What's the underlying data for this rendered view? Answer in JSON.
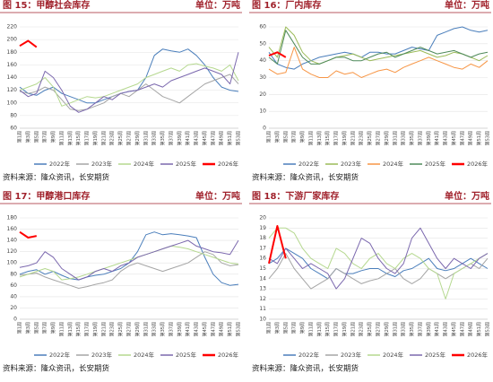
{
  "chart_data": [
    {
      "type": "line",
      "title": "图 15：甲醇社会库存",
      "unit": "单位：万吨",
      "source": "资料来源：隆众资讯，长安期货",
      "categories": [
        "第1周",
        "第3周",
        "第5周",
        "第7周",
        "第9周",
        "第11周",
        "第13周",
        "第15周",
        "第17周",
        "第19周",
        "第21周",
        "第23周",
        "第25周",
        "第27周",
        "第29周",
        "第31周",
        "第33周",
        "第35周",
        "第37周",
        "第39周",
        "第41周",
        "第43周",
        "第45周",
        "第47周",
        "第49周",
        "第51周",
        "第53周"
      ],
      "ylim": [
        60,
        220
      ],
      "yticks": [
        60,
        80,
        100,
        120,
        140,
        160,
        180,
        200,
        220
      ],
      "grid": true,
      "series": [
        {
          "name": "2022年",
          "color": "#4a7ebb",
          "values": [
            125,
            115,
            112,
            120,
            125,
            115,
            110,
            105,
            100,
            100,
            105,
            110,
            115,
            118,
            120,
            140,
            175,
            185,
            182,
            180,
            185,
            175,
            160,
            140,
            125,
            120,
            118
          ]
        },
        {
          "name": "2023年",
          "color": "#a5a5a5",
          "values": [
            118,
            115,
            118,
            125,
            120,
            105,
            90,
            88,
            90,
            95,
            100,
            110,
            115,
            110,
            120,
            130,
            120,
            110,
            105,
            100,
            110,
            120,
            130,
            135,
            140,
            145,
            130
          ]
        },
        {
          "name": "2024年",
          "color": "#b5d88f",
          "values": [
            120,
            125,
            130,
            140,
            125,
            95,
            100,
            105,
            110,
            108,
            110,
            115,
            120,
            125,
            130,
            140,
            145,
            150,
            155,
            150,
            160,
            162,
            158,
            155,
            150,
            160,
            135
          ]
        },
        {
          "name": "2025年",
          "color": "#7b68ae",
          "values": [
            120,
            110,
            115,
            150,
            140,
            120,
            95,
            85,
            90,
            100,
            110,
            105,
            115,
            118,
            120,
            125,
            130,
            125,
            135,
            140,
            145,
            150,
            155,
            150,
            145,
            130,
            180
          ]
        },
        {
          "name": "2026年",
          "color": "#ff0000",
          "values": [
            190,
            198,
            188,
            null,
            null,
            null,
            null,
            null,
            null,
            null,
            null,
            null,
            null,
            null,
            null,
            null,
            null,
            null,
            null,
            null,
            null,
            null,
            null,
            null,
            null,
            null,
            null
          ]
        }
      ]
    },
    {
      "type": "line",
      "title": "图 16：厂内库存",
      "unit": "单位：万吨",
      "source": "资料来源：隆众资讯，长安期货",
      "categories": [
        "第1周",
        "第3周",
        "第5周",
        "第7周",
        "第9周",
        "第11周",
        "第13周",
        "第15周",
        "第17周",
        "第19周",
        "第21周",
        "第23周",
        "第25周",
        "第27周",
        "第29周",
        "第31周",
        "第33周",
        "第35周",
        "第37周",
        "第39周",
        "第41周",
        "第43周",
        "第45周",
        "第47周",
        "第49周",
        "第51周",
        "第53周"
      ],
      "ylim": [
        0,
        60
      ],
      "yticks": [
        0,
        10,
        20,
        30,
        40,
        50,
        60
      ],
      "grid": true,
      "series": [
        {
          "name": "2022年",
          "color": "#4a7ebb",
          "values": [
            45,
            38,
            36,
            35,
            38,
            40,
            42,
            43,
            44,
            45,
            44,
            42,
            45,
            45,
            44,
            44,
            46,
            48,
            47,
            46,
            55,
            57,
            59,
            60,
            58,
            57,
            58
          ]
        },
        {
          "name": "2023年",
          "color": "#9bbb59",
          "values": [
            48,
            42,
            60,
            55,
            45,
            40,
            38,
            40,
            42,
            43,
            44,
            42,
            40,
            41,
            42,
            43,
            44,
            45,
            46,
            44,
            42,
            43,
            45,
            44,
            42,
            40,
            43
          ]
        },
        {
          "name": "2024年",
          "color": "#f79646",
          "values": [
            35,
            32,
            33,
            48,
            35,
            32,
            30,
            30,
            34,
            32,
            33,
            30,
            32,
            34,
            35,
            33,
            36,
            38,
            40,
            42,
            40,
            38,
            36,
            35,
            38,
            36,
            40
          ]
        },
        {
          "name": "2025年",
          "color": "#4f8a5a",
          "values": [
            42,
            38,
            58,
            50,
            42,
            38,
            38,
            40,
            42,
            42,
            40,
            40,
            42,
            44,
            45,
            42,
            44,
            46,
            48,
            46,
            44,
            45,
            46,
            44,
            42,
            44,
            45
          ]
        },
        {
          "name": "2026年",
          "color": "#ff0000",
          "values": [
            43,
            45,
            42,
            null,
            null,
            null,
            null,
            null,
            null,
            null,
            null,
            null,
            null,
            null,
            null,
            null,
            null,
            null,
            null,
            null,
            null,
            null,
            null,
            null,
            null,
            null,
            null
          ]
        }
      ]
    },
    {
      "type": "line",
      "title": "图 17：甲醇港口库存",
      "unit": "单位：万吨",
      "source": "资料来源：隆众资讯，长安期货",
      "categories": [
        "第1周",
        "第3周",
        "第5周",
        "第7周",
        "第9周",
        "第11周",
        "第13周",
        "第15周",
        "第17周",
        "第19周",
        "第21周",
        "第23周",
        "第25周",
        "第27周",
        "第29周",
        "第31周",
        "第33周",
        "第35周",
        "第37周",
        "第39周",
        "第41周",
        "第43周",
        "第45周",
        "第47周",
        "第49周",
        "第51周",
        "第53周"
      ],
      "ylim": [
        0,
        180
      ],
      "yticks": [
        0,
        20,
        40,
        60,
        80,
        100,
        120,
        140,
        160,
        180
      ],
      "grid": true,
      "series": [
        {
          "name": "2022年",
          "color": "#4a7ebb",
          "values": [
            80,
            85,
            88,
            80,
            85,
            78,
            72,
            70,
            75,
            78,
            80,
            85,
            90,
            100,
            120,
            150,
            155,
            150,
            152,
            150,
            148,
            145,
            110,
            80,
            65,
            60,
            62
          ]
        },
        {
          "name": "2023年",
          "color": "#a5a5a5",
          "values": [
            78,
            80,
            82,
            75,
            70,
            65,
            60,
            55,
            58,
            62,
            65,
            70,
            85,
            95,
            100,
            95,
            90,
            85,
            90,
            95,
            100,
            110,
            120,
            115,
            100,
            95,
            97
          ]
        },
        {
          "name": "2024年",
          "color": "#b5d88f",
          "values": [
            75,
            80,
            85,
            90,
            85,
            70,
            72,
            75,
            80,
            85,
            90,
            95,
            100,
            105,
            110,
            115,
            120,
            125,
            130,
            128,
            125,
            120,
            115,
            110,
            105,
            100,
            98
          ]
        },
        {
          "name": "2025年",
          "color": "#7b68ae",
          "values": [
            92,
            95,
            100,
            120,
            110,
            90,
            80,
            70,
            75,
            85,
            90,
            85,
            95,
            100,
            110,
            115,
            120,
            125,
            130,
            135,
            140,
            130,
            125,
            120,
            118,
            115,
            140
          ]
        },
        {
          "name": "2026年",
          "color": "#ff0000",
          "values": [
            155,
            145,
            148,
            null,
            null,
            null,
            null,
            null,
            null,
            null,
            null,
            null,
            null,
            null,
            null,
            null,
            null,
            null,
            null,
            null,
            null,
            null,
            null,
            null,
            null,
            null,
            null
          ]
        }
      ]
    },
    {
      "type": "line",
      "title": "图 18：下游厂家库存",
      "unit": "单位：万吨",
      "source": "资料来源：隆众资讯，长安期货",
      "categories": [
        "第1周",
        "第3周",
        "第5周",
        "第7周",
        "第9周",
        "第11周",
        "第13周",
        "第15周",
        "第17周",
        "第19周",
        "第21周",
        "第23周",
        "第25周",
        "第27周",
        "第29周",
        "第31周",
        "第33周",
        "第35周",
        "第37周",
        "第39周",
        "第41周",
        "第43周",
        "第45周",
        "第47周",
        "第49周",
        "第51周",
        "第53周"
      ],
      "ylim": [
        10,
        20
      ],
      "yticks": [
        10,
        11,
        12,
        13,
        14,
        15,
        16,
        17,
        18,
        19,
        20
      ],
      "grid": true,
      "series": [
        {
          "name": "2022年",
          "color": "#4a7ebb",
          "values": [
            15.5,
            16,
            17,
            16.5,
            16,
            15,
            14.5,
            14,
            15,
            14.5,
            14.5,
            14.8,
            15,
            15,
            14.5,
            14.2,
            14.8,
            15,
            15.5,
            16,
            15,
            14.8,
            15,
            15.5,
            16,
            15.5,
            15
          ]
        },
        {
          "name": "2023年",
          "color": "#a5a5a5",
          "values": [
            14,
            15,
            16.5,
            15,
            14,
            13,
            13.5,
            14,
            15,
            14.5,
            14,
            13.5,
            13.8,
            14,
            14.5,
            15,
            14,
            13.5,
            14,
            15,
            14.5,
            14,
            14.5,
            15,
            15.5,
            15,
            16
          ]
        },
        {
          "name": "2024年",
          "color": "#b5d88f",
          "values": [
            18,
            19,
            19,
            18.5,
            17,
            16,
            15.5,
            15,
            17,
            16.5,
            15.5,
            15,
            16,
            16.5,
            15.5,
            15,
            16,
            16.5,
            16,
            15,
            14.5,
            12,
            14.5,
            15,
            15.5,
            16,
            16.5
          ]
        },
        {
          "name": "2025年",
          "color": "#7b68ae",
          "values": [
            16,
            15.5,
            17,
            16,
            15,
            15.5,
            15,
            14.5,
            13,
            14,
            16,
            18,
            17.5,
            16,
            15,
            14.5,
            15.5,
            18,
            19,
            17.5,
            16,
            15,
            16,
            15.5,
            15,
            16,
            16.5
          ]
        },
        {
          "name": "2026年",
          "color": "#ff0000",
          "values": [
            15.5,
            19.2,
            16,
            null,
            null,
            null,
            null,
            null,
            null,
            null,
            null,
            null,
            null,
            null,
            null,
            null,
            null,
            null,
            null,
            null,
            null,
            null,
            null,
            null,
            null,
            null,
            null
          ]
        }
      ]
    }
  ]
}
